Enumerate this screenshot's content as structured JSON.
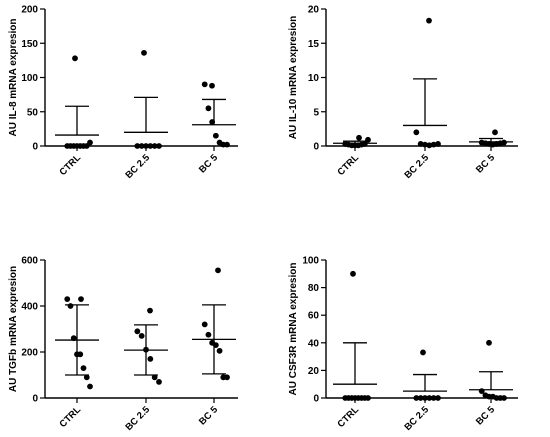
{
  "chart_data": [
    {
      "type": "scatter",
      "ylabel": "AU IL-8 mRNA expresion",
      "ylim": [
        0,
        200
      ],
      "yticks": [
        0,
        50,
        100,
        150,
        200
      ],
      "categories": [
        "CTRL",
        "BC 2.5",
        "BC 5"
      ],
      "series": [
        {
          "points": [
            128,
            0,
            0,
            0,
            0,
            0,
            0,
            0,
            5
          ],
          "mean": 16,
          "sd_high": 58
        },
        {
          "points": [
            136,
            0,
            0,
            0,
            0,
            0,
            0
          ],
          "mean": 20,
          "sd_high": 71
        },
        {
          "points": [
            88,
            90,
            55,
            35,
            15,
            5,
            2,
            2
          ],
          "mean": 31,
          "sd_high": 68
        }
      ]
    },
    {
      "type": "scatter",
      "ylabel": "AU IL-10 mRNA expresion",
      "ylim": [
        0,
        20
      ],
      "yticks": [
        0,
        5,
        10,
        15,
        20
      ],
      "categories": [
        "CTRL",
        "BC 2.5",
        "BC 5"
      ],
      "series": [
        {
          "points": [
            1.2,
            0.3,
            0.2,
            0.1,
            0.1,
            0.1,
            0.2,
            0.3,
            0.9
          ],
          "mean": 0.4,
          "sd_high": 0.7
        },
        {
          "points": [
            18.3,
            2.0,
            0.3,
            0.2,
            0.1,
            0.2,
            0.3
          ],
          "mean": 3.0,
          "sd_high": 9.8
        },
        {
          "points": [
            2.0,
            0.5,
            0.4,
            0.3,
            0.2,
            0.3,
            0.4,
            0.5
          ],
          "mean": 0.6,
          "sd_high": 1.1
        }
      ]
    },
    {
      "type": "scatter",
      "ylabel": "AU TGFb mRNA expresion",
      "ylim": [
        0,
        600
      ],
      "yticks": [
        0,
        200,
        400,
        600
      ],
      "categories": [
        "CTRL",
        "BC 2.5",
        "BC 5"
      ],
      "series": [
        {
          "points": [
            430,
            430,
            400,
            260,
            190,
            190,
            130,
            90,
            50
          ],
          "mean": 252,
          "sd_high": 405,
          "sd_low": 100
        },
        {
          "points": [
            380,
            290,
            270,
            210,
            170,
            90,
            70
          ],
          "mean": 208,
          "sd_high": 318,
          "sd_low": 100
        },
        {
          "points": [
            555,
            320,
            275,
            240,
            230,
            205,
            90,
            90
          ],
          "mean": 255,
          "sd_high": 405,
          "sd_low": 105
        }
      ]
    },
    {
      "type": "scatter",
      "ylabel": "AU CSF3R mRNA expresion",
      "ylim": [
        0,
        100
      ],
      "yticks": [
        0,
        20,
        40,
        60,
        80,
        100
      ],
      "categories": [
        "CTRL",
        "BC 2.5",
        "BC 5"
      ],
      "series": [
        {
          "points": [
            90,
            0,
            0,
            0,
            0,
            0,
            0,
            0,
            0
          ],
          "mean": 10,
          "sd_high": 40
        },
        {
          "points": [
            33,
            0,
            0,
            0,
            0,
            0,
            0
          ],
          "mean": 5,
          "sd_high": 17
        },
        {
          "points": [
            40,
            5,
            2,
            1,
            1,
            0,
            0,
            0
          ],
          "mean": 6,
          "sd_high": 19
        }
      ]
    }
  ]
}
